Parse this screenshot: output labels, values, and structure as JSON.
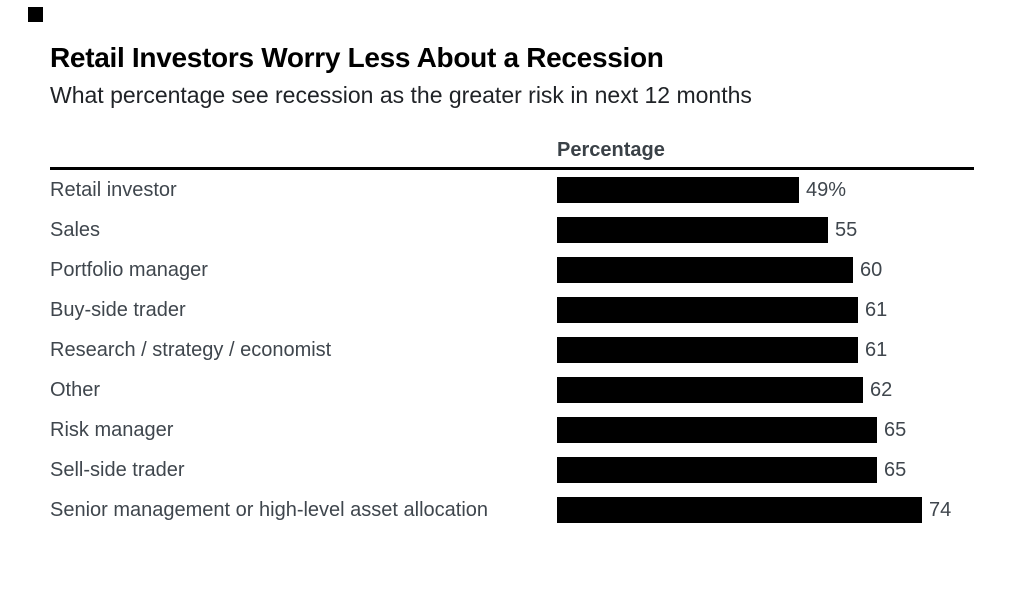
{
  "brand": {
    "mark": "black-square"
  },
  "header": {
    "title": "Retail Investors Worry Less About a Recession",
    "subtitle": "What percentage see recession as the greater risk in next 12 months"
  },
  "chart_data": {
    "type": "bar",
    "orientation": "horizontal",
    "title": "Retail Investors Worry Less About a Recession",
    "subtitle": "What percentage see recession as the greater risk in next 12 months",
    "column_header": "Percentage",
    "categories": [
      "Retail investor",
      "Sales",
      "Portfolio manager",
      "Buy-side trader",
      "Research / strategy / economist",
      "Other",
      "Risk manager",
      "Sell-side trader",
      "Senior management or high-level asset allocation"
    ],
    "values": [
      49,
      55,
      60,
      61,
      61,
      62,
      65,
      65,
      74
    ],
    "value_labels": [
      "49%",
      "55",
      "60",
      "61",
      "61",
      "62",
      "65",
      "65",
      "74"
    ],
    "xlim": [
      0,
      75
    ],
    "grid": false,
    "legend": false,
    "bar_color": "#000000",
    "label_color": "#3f464d",
    "title_color": "#000000",
    "rule_color": "#000000",
    "background": "#ffffff"
  }
}
